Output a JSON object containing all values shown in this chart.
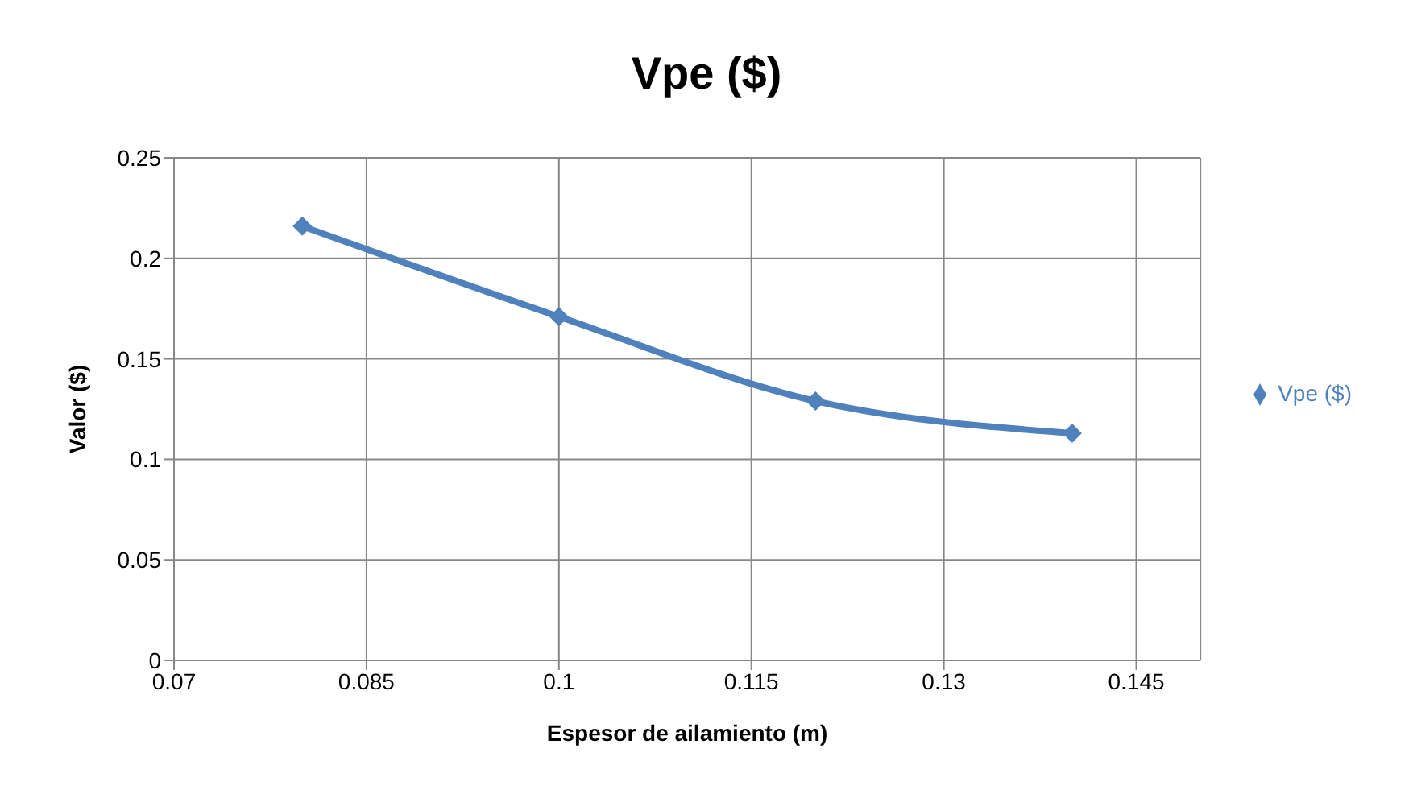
{
  "chart_data": {
    "type": "line",
    "title": "Vpe ($)",
    "xlabel": "Espesor de ailamiento (m)",
    "ylabel": "Valor ($)",
    "x": [
      0.08,
      0.1,
      0.12,
      0.14
    ],
    "series": [
      {
        "name": "Vpe ($)",
        "color": "#4f81bd",
        "values": [
          0.216,
          0.171,
          0.129,
          0.113
        ]
      }
    ],
    "xlim": [
      0.07,
      0.15
    ],
    "xticks": [
      0.07,
      0.085,
      0.1,
      0.115,
      0.13,
      0.145
    ],
    "ylim": [
      0,
      0.25
    ],
    "yticks": [
      0,
      0.05,
      0.1,
      0.15,
      0.2,
      0.25
    ],
    "grid": true,
    "legend": "right",
    "marker": "diamond",
    "line_style": "solid"
  }
}
